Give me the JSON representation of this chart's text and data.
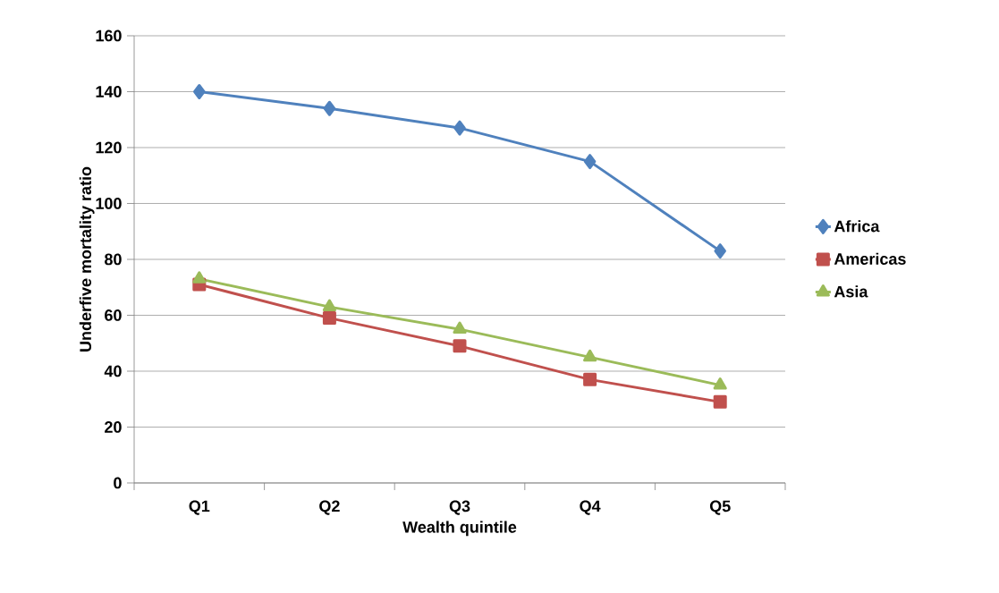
{
  "chart_data": {
    "type": "line",
    "xlabel": "Wealth quintile",
    "ylabel": "Underfive mortality ratio",
    "categories": [
      "Q1",
      "Q2",
      "Q3",
      "Q4",
      "Q5"
    ],
    "series": [
      {
        "name": "Africa",
        "color": "#4f81bd",
        "marker": "diamond",
        "values": [
          140,
          134,
          127,
          115,
          83
        ]
      },
      {
        "name": "Americas",
        "color": "#c0504d",
        "marker": "square",
        "values": [
          71,
          59,
          49,
          37,
          29
        ]
      },
      {
        "name": "Asia",
        "color": "#9bbb59",
        "marker": "triangle",
        "values": [
          73,
          63,
          55,
          45,
          35
        ]
      }
    ],
    "ylim": [
      0,
      160
    ],
    "yticks": [
      0,
      20,
      40,
      60,
      80,
      100,
      120,
      140,
      160
    ],
    "grid": "y",
    "legend": "right",
    "line_style": "solid"
  }
}
